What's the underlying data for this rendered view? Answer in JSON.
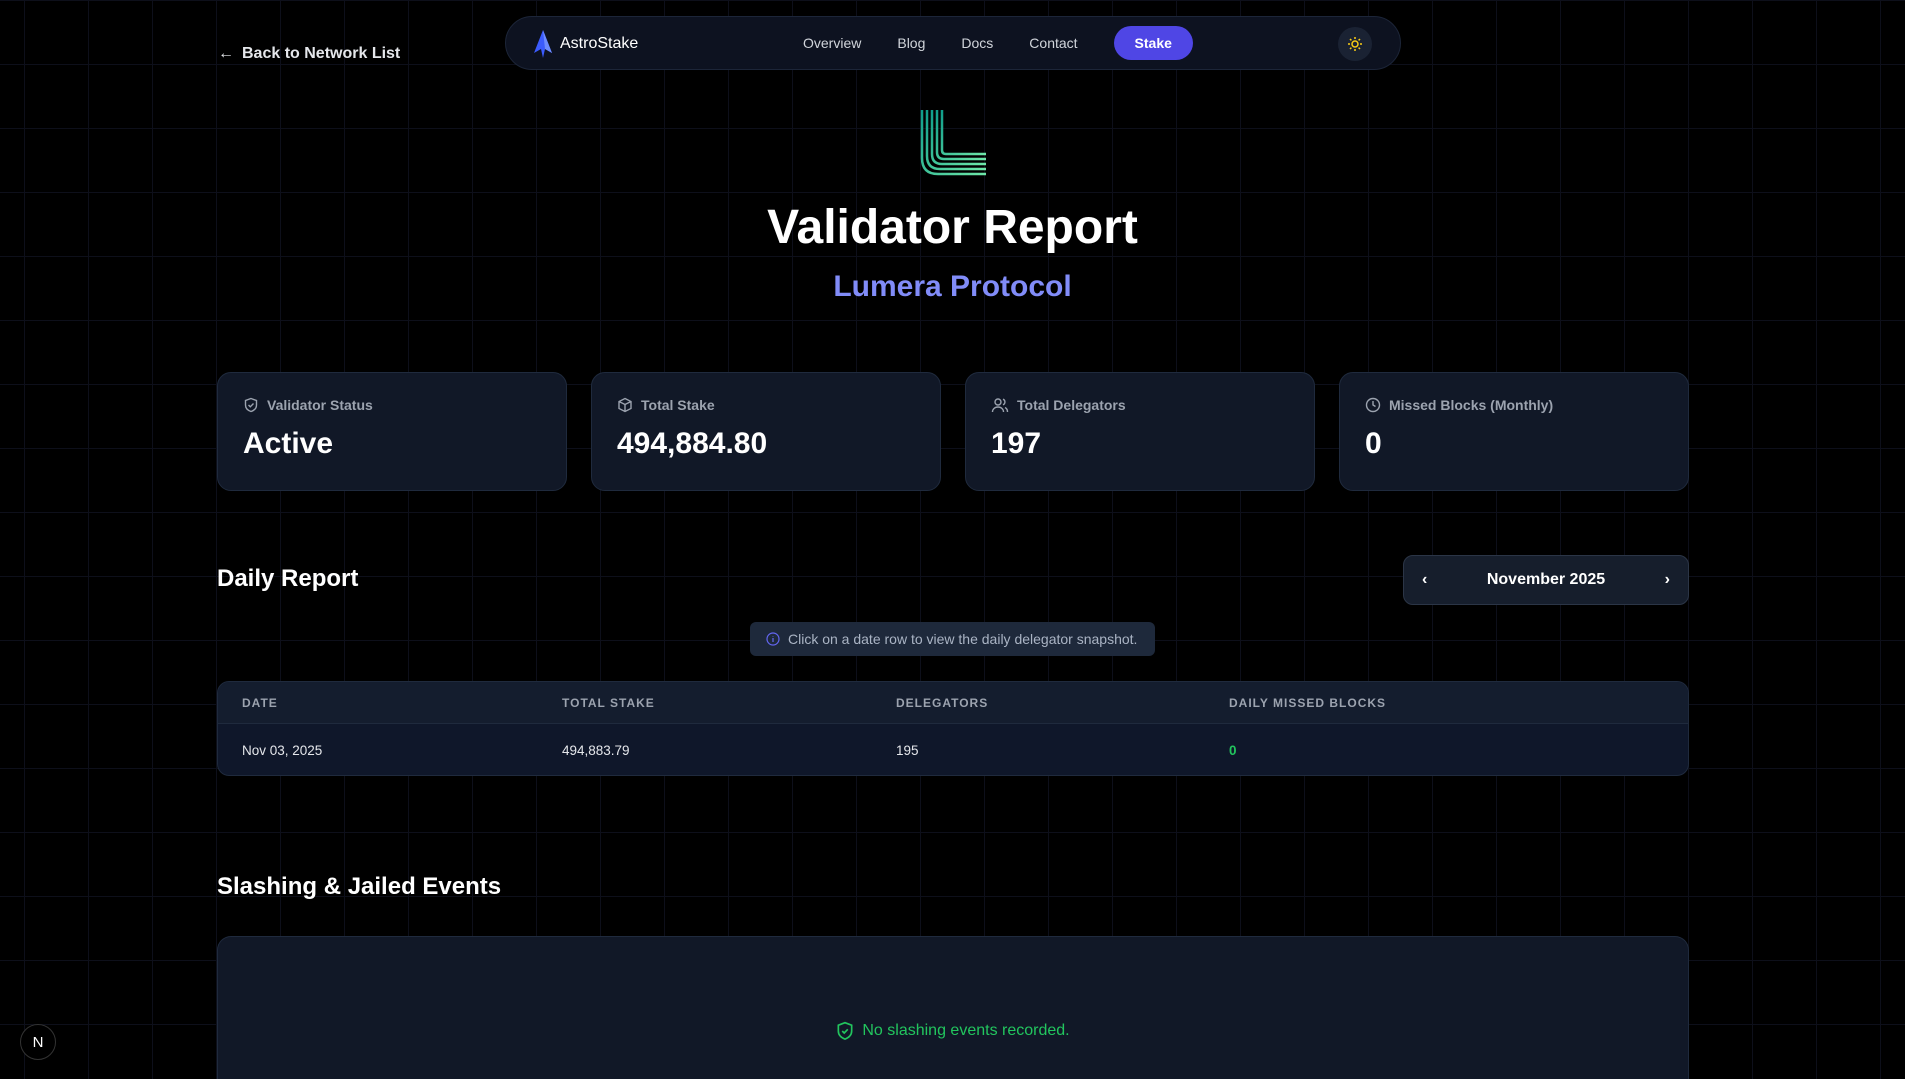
{
  "back_link": "Back to Network List",
  "nav": {
    "brand": "AstroStake",
    "links": [
      "Overview",
      "Blog",
      "Docs",
      "Contact"
    ],
    "stake_label": "Stake",
    "theme_icon": "sun-icon"
  },
  "header": {
    "title": "Validator Report",
    "subtitle": "Lumera Protocol"
  },
  "cards": [
    {
      "label": "Validator Status",
      "value": "Active",
      "icon": "shield-check-icon"
    },
    {
      "label": "Total Stake",
      "value": "494,884.80",
      "icon": "box-icon"
    },
    {
      "label": "Total Delegators",
      "value": "197",
      "icon": "users-icon"
    },
    {
      "label": "Missed Blocks (Monthly)",
      "value": "0",
      "icon": "clock-icon"
    }
  ],
  "daily": {
    "title": "Daily Report",
    "month": "November 2025",
    "info": "Click on a date row to view the daily delegator snapshot.",
    "columns": [
      "DATE",
      "TOTAL STAKE",
      "DELEGATORS",
      "DAILY MISSED BLOCKS"
    ],
    "rows": [
      {
        "date": "Nov 03, 2025",
        "stake": "494,883.79",
        "delegators": "195",
        "missed": "0"
      }
    ]
  },
  "slashing": {
    "title": "Slashing & Jailed Events",
    "empty": "No slashing events recorded."
  },
  "badge": "N",
  "colors": {
    "accent": "#4f46e5",
    "subtitle": "#818cf8",
    "success": "#22c55e"
  }
}
